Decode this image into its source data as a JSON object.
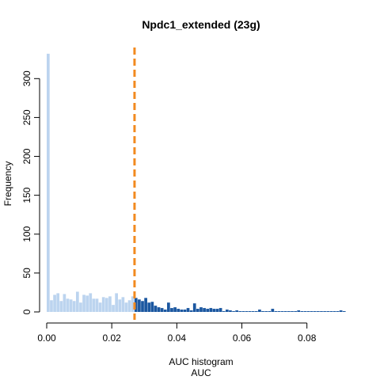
{
  "chart_data": {
    "type": "bar",
    "title": "Npdc1_extended (23g)",
    "subtitle": "AUC histogram",
    "xlabel": "AUC",
    "ylabel": "Frequency",
    "xlim": [
      0,
      0.092
    ],
    "ylim": [
      0,
      340
    ],
    "x_ticks": [
      0.0,
      0.02,
      0.04,
      0.06,
      0.08
    ],
    "x_tick_labels": [
      "0.00",
      "0.02",
      "0.04",
      "0.06",
      "0.08"
    ],
    "y_ticks": [
      0,
      50,
      100,
      150,
      200,
      250,
      300
    ],
    "y_tick_labels": [
      "0",
      "50",
      "100",
      "150",
      "200",
      "250",
      "300"
    ],
    "bin_width": 0.001,
    "threshold": 0.027,
    "colors": {
      "below_threshold": "#bcd4ef",
      "above_threshold": "#1b57a0",
      "threshold_line": "#f28a1f"
    },
    "bins_start": [
      0.0,
      0.001,
      0.002,
      0.003,
      0.004,
      0.005,
      0.006,
      0.007,
      0.008,
      0.009,
      0.01,
      0.011,
      0.012,
      0.013,
      0.014,
      0.015,
      0.016,
      0.017,
      0.018,
      0.019,
      0.02,
      0.021,
      0.022,
      0.023,
      0.024,
      0.025,
      0.026,
      0.027,
      0.028,
      0.029,
      0.03,
      0.031,
      0.032,
      0.033,
      0.034,
      0.035,
      0.036,
      0.037,
      0.038,
      0.039,
      0.04,
      0.041,
      0.042,
      0.043,
      0.044,
      0.045,
      0.046,
      0.047,
      0.048,
      0.049,
      0.05,
      0.051,
      0.052,
      0.053,
      0.054,
      0.055,
      0.056,
      0.057,
      0.058,
      0.059,
      0.06,
      0.061,
      0.062,
      0.063,
      0.064,
      0.065,
      0.066,
      0.067,
      0.068,
      0.069,
      0.07,
      0.071,
      0.072,
      0.073,
      0.074,
      0.075,
      0.076,
      0.077,
      0.078,
      0.079,
      0.08,
      0.081,
      0.082,
      0.083,
      0.084,
      0.085,
      0.086,
      0.087,
      0.088,
      0.089,
      0.09,
      0.091
    ],
    "frequencies": [
      332,
      15,
      22,
      24,
      14,
      23,
      17,
      16,
      14,
      26,
      12,
      22,
      21,
      24,
      17,
      17,
      12,
      19,
      18,
      20,
      9,
      24,
      16,
      19,
      12,
      15,
      20,
      18,
      16,
      14,
      18,
      12,
      13,
      8,
      6,
      5,
      3,
      12,
      5,
      6,
      4,
      3,
      3,
      5,
      2,
      11,
      4,
      6,
      5,
      4,
      5,
      4,
      4,
      5,
      1,
      3,
      2,
      1,
      2,
      1,
      1,
      1,
      1,
      1,
      1,
      3,
      1,
      1,
      1,
      4,
      1,
      1,
      1,
      1,
      1,
      1,
      1,
      2,
      1,
      1,
      1,
      1,
      1,
      1,
      1,
      1,
      1,
      1,
      1,
      1,
      2,
      1
    ]
  }
}
